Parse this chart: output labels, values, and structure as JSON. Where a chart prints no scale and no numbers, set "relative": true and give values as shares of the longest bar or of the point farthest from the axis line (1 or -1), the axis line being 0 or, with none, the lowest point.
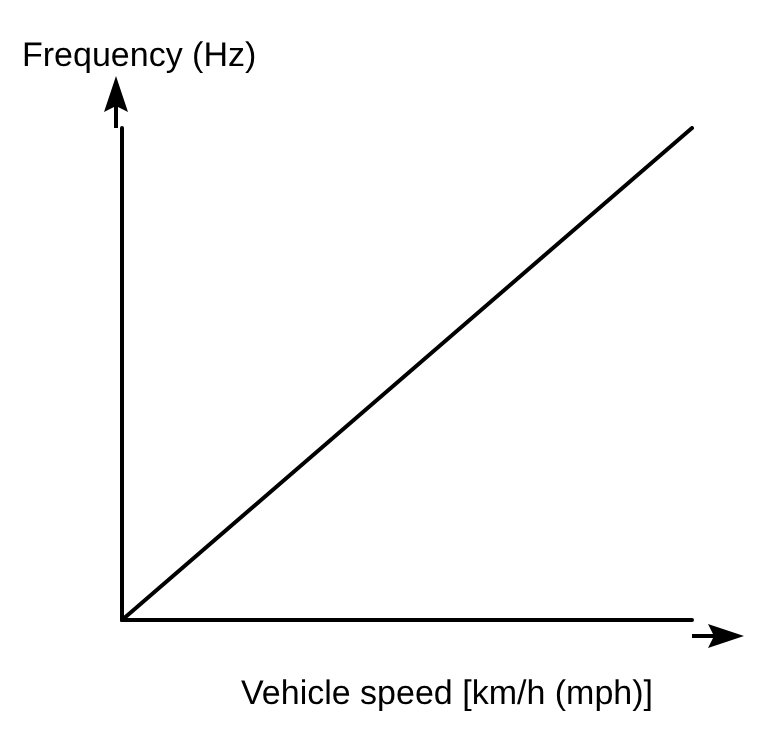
{
  "chart_data": {
    "type": "line",
    "relative": true,
    "xlabel": "Vehicle speed [km/h (mph)]",
    "ylabel": "Frequency (Hz)",
    "categories": [
      null,
      null
    ],
    "series": [
      {
        "color": "#000000",
        "values": [
          0,
          1
        ]
      }
    ],
    "grid": false,
    "marker": "none",
    "line_style": "solid"
  }
}
